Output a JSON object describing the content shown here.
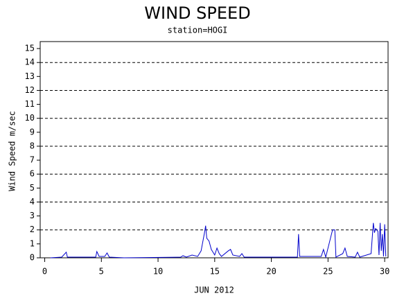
{
  "chart_data": {
    "type": "line",
    "title": "WIND SPEED",
    "subtitle": "station=HOGI",
    "y_label": "Wind Speed m/sec",
    "x_label": "JUN 2012",
    "xlim": [
      -0.4,
      30.3
    ],
    "xticks": [
      0,
      5,
      10,
      15,
      20,
      25,
      30
    ],
    "ylim": [
      0,
      15.5
    ],
    "yticks": [
      0,
      1,
      2,
      3,
      4,
      5,
      6,
      7,
      8,
      9,
      10,
      11,
      12,
      13,
      14,
      15
    ],
    "grid_lines": [
      2,
      4,
      6,
      8,
      10,
      12,
      14
    ],
    "series": [
      {
        "name": "wind speed",
        "color": "#0000cc",
        "x": [
          0.5,
          1.5,
          1.9,
          2.0,
          2.5,
          4.5,
          4.6,
          4.8,
          5.3,
          5.5,
          5.7,
          7,
          12,
          12.2,
          12.5,
          13,
          13.5,
          13.8,
          14.1,
          14.2,
          14.3,
          14.5,
          14.7,
          15,
          15.2,
          15.4,
          15.6,
          16.2,
          16.4,
          16.6,
          17.2,
          17.4,
          17.6,
          22.3,
          22.4,
          22.5,
          24.4,
          24.6,
          24.8,
          25.4,
          25.6,
          25.7,
          26.3,
          26.5,
          26.7,
          27.4,
          27.6,
          27.8,
          28.8,
          29.0,
          29.1,
          29.2,
          29.4,
          29.5,
          29.6,
          29.7,
          29.8,
          29.9,
          30.0,
          30.1
        ],
        "values": [
          0,
          0.05,
          0.4,
          0.05,
          0.05,
          0.05,
          0.45,
          0.1,
          0.1,
          0.35,
          0.05,
          0,
          0.05,
          0.15,
          0.05,
          0.2,
          0.1,
          0.5,
          1.8,
          2.3,
          1.4,
          1.2,
          0.6,
          0.2,
          0.7,
          0.3,
          0.1,
          0.5,
          0.6,
          0.2,
          0.1,
          0.3,
          0.05,
          0.05,
          1.7,
          0.1,
          0.1,
          0.6,
          0.05,
          2.0,
          2.0,
          0.05,
          0.3,
          0.7,
          0.1,
          0.05,
          0.4,
          0.05,
          0.3,
          2.5,
          1.8,
          2.1,
          1.9,
          0.2,
          2.5,
          0.5,
          1.7,
          0.1,
          2.4,
          0.1
        ]
      }
    ]
  }
}
